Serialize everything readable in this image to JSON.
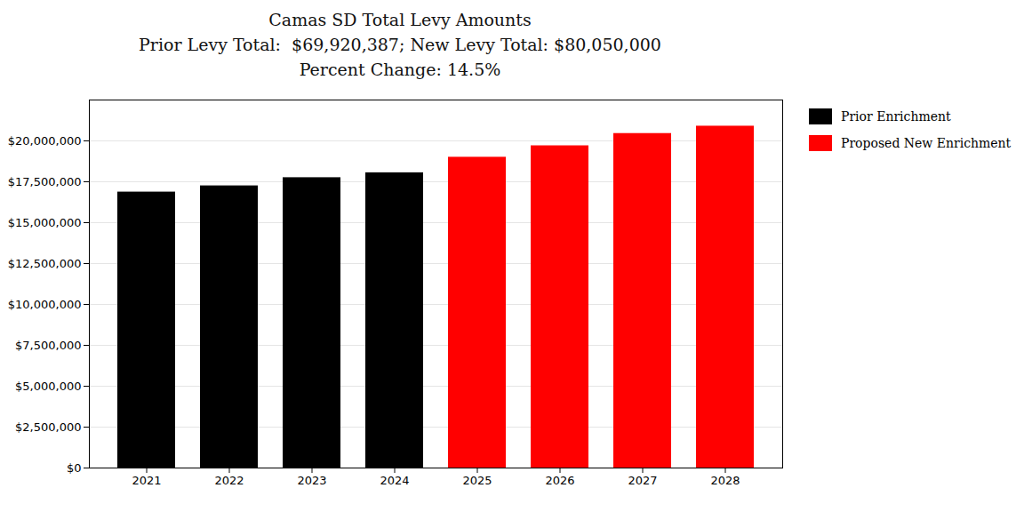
{
  "chart_data": {
    "type": "bar",
    "title": "Camas SD Total Levy Amounts",
    "subtitle": [
      "Prior Levy Total:  $69,920,387; New Levy Total: $80,050,000",
      "Percent Change: 14.5%"
    ],
    "categories": [
      "2021",
      "2022",
      "2023",
      "2024",
      "2025",
      "2026",
      "2027",
      "2028"
    ],
    "series": [
      {
        "name": "Prior Enrichment",
        "color": "#000000",
        "values": [
          16870387,
          17250000,
          17750000,
          18050000,
          null,
          null,
          null,
          null
        ]
      },
      {
        "name": "Proposed New Enrichment",
        "color": "#ff0000",
        "values": [
          null,
          null,
          null,
          null,
          19000000,
          19700000,
          20450000,
          20900000
        ]
      }
    ],
    "ylim": [
      0,
      22500000
    ],
    "yticks": [
      {
        "value": 0,
        "label": "$0"
      },
      {
        "value": 2500000,
        "label": "$2,500,000"
      },
      {
        "value": 5000000,
        "label": "$5,000,000"
      },
      {
        "value": 7500000,
        "label": "$7,500,000"
      },
      {
        "value": 10000000,
        "label": "$10,000,000"
      },
      {
        "value": 12500000,
        "label": "$12,500,000"
      },
      {
        "value": 15000000,
        "label": "$15,000,000"
      },
      {
        "value": 17500000,
        "label": "$17,500,000"
      },
      {
        "value": 20000000,
        "label": "$20,000,000"
      }
    ],
    "grid": true,
    "legend": "right"
  }
}
